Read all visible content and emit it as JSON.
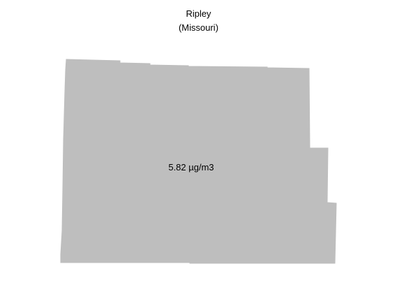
{
  "map": {
    "title": "Ripley",
    "subtitle": "(Missouri)",
    "region": {
      "name": "Ripley",
      "value_label": "5.82 µg/m3",
      "fill_color": "#bebebe"
    }
  }
}
